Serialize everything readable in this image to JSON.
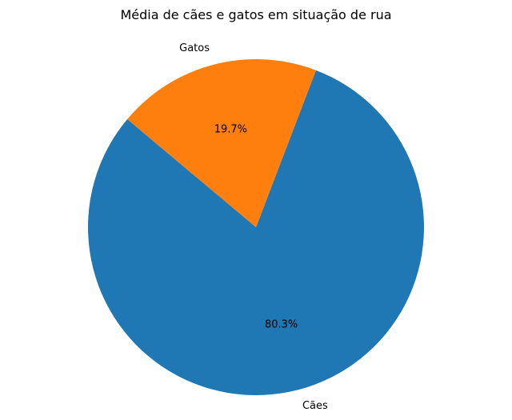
{
  "chart_data": {
    "type": "pie",
    "title": "Média de cães e gatos em situação de rua",
    "slices": [
      {
        "label": "Cães",
        "value": 80.3,
        "pct_label": "80.3%",
        "color": "#1f77b4"
      },
      {
        "label": "Gatos",
        "value": 19.7,
        "pct_label": "19.7%",
        "color": "#ff7f0e"
      }
    ],
    "start_angle_deg": 140,
    "counterclockwise": true,
    "legend": "none"
  }
}
